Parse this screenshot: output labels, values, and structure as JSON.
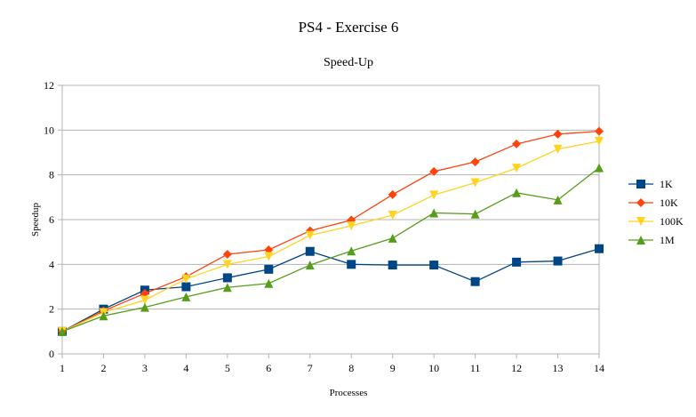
{
  "chart_data": {
    "type": "line",
    "title": "PS4 - Exercise 6",
    "subtitle": "Speed-Up",
    "xlabel": "Processes",
    "ylabel": "Speedup",
    "x": [
      1,
      2,
      3,
      4,
      5,
      6,
      7,
      8,
      9,
      10,
      11,
      12,
      13,
      14
    ],
    "xlim": [
      1,
      14
    ],
    "ylim": [
      0,
      12
    ],
    "yticks": [
      0,
      2,
      4,
      6,
      8,
      10,
      12
    ],
    "grid": true,
    "legend_position": "right",
    "series": [
      {
        "name": "1K",
        "marker": "square",
        "color": "#004586",
        "values": [
          1.0,
          2.0,
          2.85,
          3.0,
          3.4,
          3.78,
          4.58,
          4.0,
          3.97,
          3.97,
          3.23,
          4.1,
          4.15,
          4.7
        ]
      },
      {
        "name": "10K",
        "marker": "diamond",
        "color": "#ff420e",
        "values": [
          1.0,
          1.92,
          2.7,
          3.45,
          4.45,
          4.65,
          5.5,
          5.98,
          7.12,
          8.15,
          8.58,
          9.38,
          9.82,
          9.95
        ]
      },
      {
        "name": "100K",
        "marker": "triangle-down",
        "color": "#ffd320",
        "values": [
          1.0,
          1.85,
          2.4,
          3.35,
          4.0,
          4.35,
          5.3,
          5.72,
          6.2,
          7.1,
          7.65,
          8.3,
          9.15,
          9.5
        ]
      },
      {
        "name": "1M",
        "marker": "triangle-up",
        "color": "#579d1c",
        "values": [
          1.0,
          1.7,
          2.08,
          2.55,
          2.97,
          3.15,
          3.97,
          4.6,
          5.17,
          6.3,
          6.25,
          7.2,
          6.88,
          8.32
        ]
      }
    ]
  }
}
